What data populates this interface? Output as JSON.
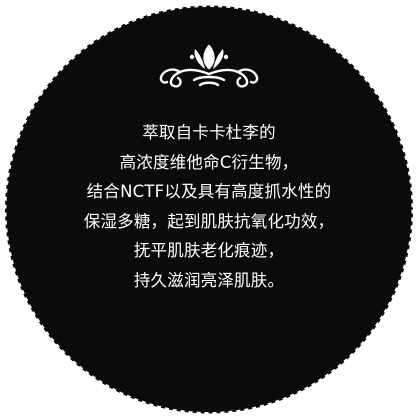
{
  "badge": {
    "fill_color": "#0b0b0b",
    "edge_color": "#ffffff",
    "edge_style": "dashed"
  },
  "ornament": {
    "icon": "flourish-ornament-icon",
    "color": "#ffffff"
  },
  "description": {
    "lines": [
      "萃取自卡卡杜李的",
      "高浓度维他命C衍生物，",
      "结合NCTF以及具有高度抓水性的",
      "保湿多糖，起到肌肤抗氧化功效，",
      "抚平肌肤老化痕迹，",
      "持久滋润亮泽肌肤。"
    ]
  }
}
